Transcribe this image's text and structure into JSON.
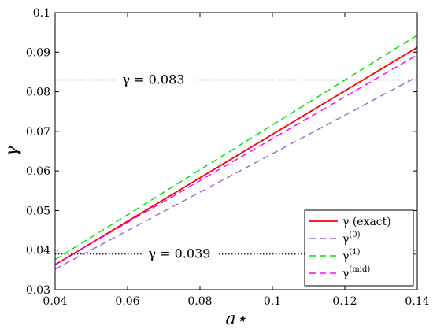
{
  "chart_data": {
    "type": "line",
    "title": "",
    "xlabel": "a⋆",
    "ylabel": "γ",
    "xlim": [
      0.04,
      0.14
    ],
    "ylim": [
      0.03,
      0.1
    ],
    "xticks": [
      0.04,
      0.06,
      0.08,
      0.1,
      0.12,
      0.14
    ],
    "xtick_labels": [
      "0.04",
      "0.06",
      "0.08",
      "0.1",
      "0.12",
      "0.14"
    ],
    "yticks": [
      0.03,
      0.04,
      0.05,
      0.06,
      0.07,
      0.08,
      0.09,
      0.1
    ],
    "ytick_labels": [
      "0.03",
      "0.04",
      "0.05",
      "0.06",
      "0.07",
      "0.08",
      "0.09",
      "0.1"
    ],
    "grid": false,
    "legend_position": "bottom-right",
    "series": [
      {
        "name": "γ (exact)",
        "color": "#ff0000",
        "dash": "solid",
        "x": [
          0.04,
          0.14
        ],
        "y": [
          0.0363,
          0.0912
        ]
      },
      {
        "name": "γ(0)",
        "label_base": "γ",
        "label_sup": "(0)",
        "color": "#9966cc",
        "dash": "dashed",
        "x": [
          0.04,
          0.14
        ],
        "y": [
          0.0352,
          0.0838
        ]
      },
      {
        "name": "γ(1)",
        "label_base": "γ",
        "label_sup": "(1)",
        "color": "#00dd00",
        "dash": "dashed",
        "x": [
          0.04,
          0.14
        ],
        "y": [
          0.0376,
          0.0943
        ]
      },
      {
        "name": "γ(mid)",
        "label_base": "γ",
        "label_sup": "(mid)",
        "color": "#ff00ff",
        "dash": "dashed",
        "x": [
          0.04,
          0.14
        ],
        "y": [
          0.0364,
          0.0893
        ]
      }
    ],
    "reference_lines": [
      {
        "y": 0.083,
        "label": "γ = 0.083",
        "style": "dotted",
        "color": "#000000"
      },
      {
        "y": 0.039,
        "label": "γ = 0.039",
        "style": "dotted",
        "color": "#000000"
      }
    ]
  }
}
